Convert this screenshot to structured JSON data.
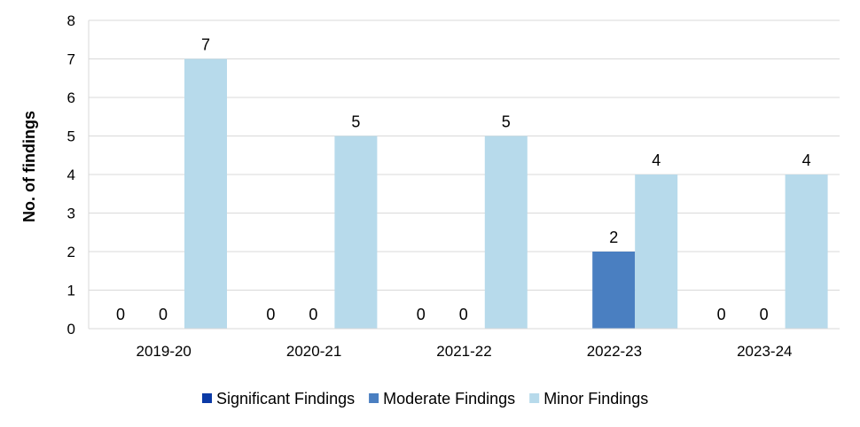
{
  "chart_data": {
    "type": "bar",
    "title": "",
    "xlabel": "",
    "ylabel": "No. of findings",
    "ylim": [
      0,
      8
    ],
    "yticks": [
      0,
      1,
      2,
      3,
      4,
      5,
      6,
      7,
      8
    ],
    "categories": [
      "2019-20",
      "2020-21",
      "2021-22",
      "2022-23",
      "2023-24"
    ],
    "series": [
      {
        "name": "Significant Findings",
        "color": "#0b3aa6",
        "values": [
          0,
          0,
          0,
          null,
          0
        ]
      },
      {
        "name": "Moderate Findings",
        "color": "#4a7fc1",
        "values": [
          0,
          0,
          0,
          2,
          0
        ]
      },
      {
        "name": "Minor Findings",
        "color": "#b7daeb",
        "values": [
          7,
          5,
          5,
          4,
          4
        ]
      }
    ],
    "grid": true,
    "legend": "bottom",
    "data_labels": true
  }
}
